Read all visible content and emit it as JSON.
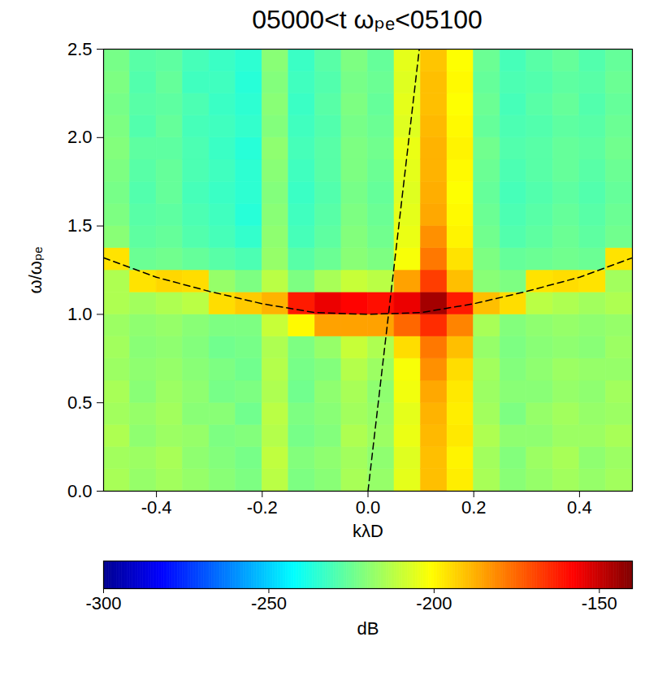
{
  "chart_data": {
    "type": "heatmap",
    "title": "05000<t ωₚₑ<05100",
    "x_label": "kλD",
    "y_label": "ω/ωₚₑ",
    "xlim": [
      -0.5,
      0.5
    ],
    "ylim": [
      0,
      2.5
    ],
    "xticks": [
      -0.4,
      -0.2,
      {
        "value": 0,
        "label": "0.0"
      },
      0.2,
      0.4
    ],
    "yticks": [
      {
        "value": 0,
        "label": "0.0"
      },
      0.5,
      {
        "value": 1,
        "label": "1.0"
      },
      1.5,
      {
        "value": 2,
        "label": "2.0"
      },
      2.5
    ],
    "x": [
      -0.475,
      -0.425,
      -0.375,
      -0.325,
      -0.275,
      -0.225,
      -0.175,
      -0.125,
      -0.075,
      -0.025,
      0.025,
      0.075,
      0.125,
      0.175,
      0.225,
      0.275,
      0.325,
      0.375,
      0.425,
      0.475
    ],
    "y": [
      0.0625,
      0.1875,
      0.3125,
      0.4375,
      0.5625,
      0.6875,
      0.8125,
      0.9375,
      1.0625,
      1.1875,
      1.3125,
      1.4375,
      1.5625,
      1.6875,
      1.8125,
      1.9375,
      2.0625,
      2.1875,
      2.3125,
      2.4375
    ],
    "values": [
      [
        -215,
        -218,
        -216,
        -218,
        -220,
        -222,
        -212,
        -222,
        -220,
        -215,
        -218,
        -205,
        -190,
        -198,
        -215,
        -220,
        -218,
        -216,
        -218,
        -216
      ],
      [
        -216,
        -217,
        -215,
        -219,
        -221,
        -223,
        -211,
        -221,
        -219,
        -216,
        -219,
        -206,
        -190,
        -199,
        -216,
        -221,
        -217,
        -215,
        -219,
        -217
      ],
      [
        -214,
        -219,
        -217,
        -218,
        -222,
        -221,
        -213,
        -223,
        -221,
        -214,
        -217,
        -204,
        -189,
        -197,
        -214,
        -219,
        -219,
        -217,
        -217,
        -215
      ],
      [
        -216,
        -218,
        -216,
        -220,
        -220,
        -224,
        -212,
        -222,
        -220,
        -216,
        -218,
        -205,
        -188,
        -198,
        -216,
        -222,
        -218,
        -216,
        -218,
        -217
      ],
      [
        -215,
        -220,
        -217,
        -219,
        -223,
        -222,
        -214,
        -224,
        -219,
        -215,
        -219,
        -203,
        -186,
        -197,
        -217,
        -220,
        -220,
        -218,
        -219,
        -216
      ],
      [
        -217,
        -219,
        -218,
        -220,
        -222,
        -224,
        -213,
        -223,
        -221,
        -213,
        -217,
        -202,
        -182,
        -195,
        -216,
        -221,
        -219,
        -217,
        -218,
        -218
      ],
      [
        -216,
        -220,
        -219,
        -221,
        -224,
        -223,
        -214,
        -222,
        -218,
        -210,
        -214,
        -195,
        -178,
        -190,
        -218,
        -222,
        -220,
        -219,
        -220,
        -217
      ],
      [
        -217,
        -219,
        -218,
        -220,
        -222,
        -222,
        -210,
        -200,
        -185,
        -185,
        -185,
        -175,
        -165,
        -180,
        -215,
        -221,
        -219,
        -218,
        -219,
        -218
      ],
      [
        -214,
        -216,
        -214,
        -212,
        -195,
        -192,
        -188,
        -162,
        -155,
        -158,
        -160,
        -155,
        -145,
        -162,
        -190,
        -195,
        -212,
        -214,
        -216,
        -214
      ],
      [
        -214,
        -196,
        -194,
        -195,
        -218,
        -222,
        -212,
        -222,
        -215,
        -210,
        -212,
        -185,
        -168,
        -190,
        -220,
        -222,
        -196,
        -195,
        -196,
        -216
      ],
      [
        -196,
        -225,
        -224,
        -226,
        -228,
        -230,
        -218,
        -228,
        -225,
        -220,
        -222,
        -202,
        -178,
        -196,
        -222,
        -226,
        -225,
        -224,
        -225,
        -196
      ],
      [
        -220,
        -227,
        -226,
        -229,
        -231,
        -234,
        -219,
        -231,
        -227,
        -221,
        -224,
        -204,
        -182,
        -199,
        -224,
        -229,
        -227,
        -225,
        -227,
        -224
      ],
      [
        -222,
        -228,
        -227,
        -230,
        -232,
        -236,
        -220,
        -232,
        -228,
        -222,
        -225,
        -205,
        -186,
        -200,
        -225,
        -230,
        -228,
        -226,
        -228,
        -225
      ],
      [
        -223,
        -229,
        -226,
        -231,
        -233,
        -235,
        -221,
        -233,
        -229,
        -223,
        -226,
        -206,
        -187,
        -201,
        -226,
        -231,
        -229,
        -227,
        -229,
        -226
      ],
      [
        -222,
        -228,
        -226,
        -230,
        -232,
        -235,
        -220,
        -232,
        -228,
        -222,
        -225,
        -205,
        -188,
        -200,
        -225,
        -230,
        -228,
        -226,
        -228,
        -225
      ],
      [
        -221,
        -227,
        -227,
        -230,
        -233,
        -236,
        -219,
        -231,
        -228,
        -222,
        -224,
        -204,
        -188,
        -199,
        -224,
        -229,
        -228,
        -226,
        -227,
        -224
      ],
      [
        -222,
        -229,
        -226,
        -231,
        -232,
        -234,
        -221,
        -232,
        -229,
        -223,
        -225,
        -206,
        -189,
        -200,
        -226,
        -230,
        -229,
        -227,
        -228,
        -225
      ],
      [
        -223,
        -228,
        -227,
        -230,
        -233,
        -235,
        -220,
        -233,
        -228,
        -222,
        -226,
        -205,
        -190,
        -201,
        -225,
        -231,
        -228,
        -226,
        -229,
        -226
      ],
      [
        -222,
        -229,
        -226,
        -232,
        -232,
        -236,
        -221,
        -232,
        -229,
        -223,
        -225,
        -206,
        -190,
        -200,
        -226,
        -230,
        -229,
        -227,
        -228,
        -225
      ],
      [
        -223,
        -228,
        -227,
        -231,
        -233,
        -235,
        -220,
        -233,
        -228,
        -222,
        -226,
        -205,
        -191,
        -201,
        -225,
        -231,
        -228,
        -226,
        -229,
        -226
      ]
    ],
    "lines": [
      {
        "x": [
          -0.5,
          -0.4,
          -0.3,
          -0.2,
          -0.1,
          0,
          0.1,
          0.2,
          0.3,
          0.4,
          0.5
        ],
        "y": [
          1.32,
          1.21,
          1.13,
          1.06,
          1.01,
          1.0,
          1.01,
          1.06,
          1.13,
          1.21,
          1.32
        ],
        "color": "black",
        "line_style": "dashed"
      },
      {
        "x": [
          0.0,
          0.097
        ],
        "y": [
          0,
          2.5
        ],
        "color": "black",
        "line_style": "dashed"
      }
    ],
    "colorbar": {
      "label": "dB",
      "range": [
        -300,
        -140
      ],
      "ticks": [
        -300,
        -250,
        -200,
        -150
      ]
    }
  }
}
